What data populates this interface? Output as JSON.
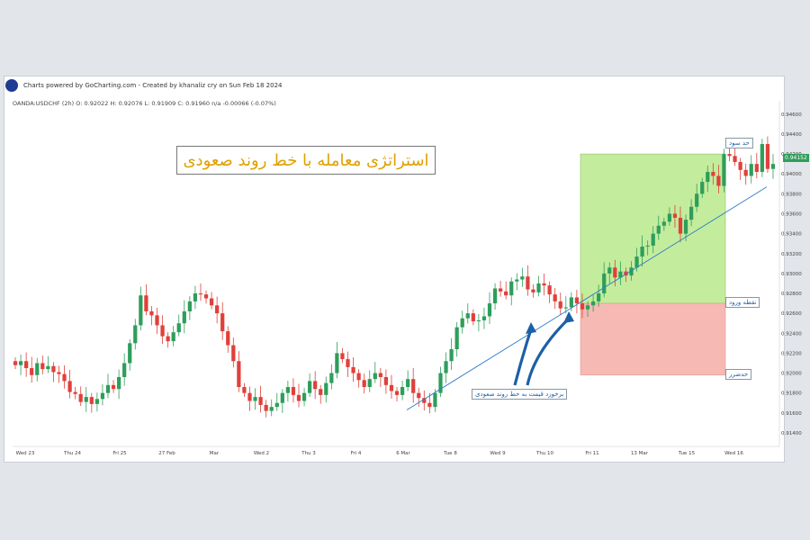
{
  "header": {
    "credit": "Charts powered by GoCharting.com - Created by khanaliz cry on Sun Feb 18 2024"
  },
  "chart_data": {
    "type": "candlestick",
    "symbol_line": "OANDA:USDCHF (2h)   O: 0.92022  H: 0.92076  L: 0.91909  C: 0.91960  n/a  -0.00066  (-0.07%)",
    "title": "استراتژی معامله با خط روند صعودی",
    "y_ticks": [
      0.914,
      0.916,
      0.918,
      0.92,
      0.922,
      0.924,
      0.926,
      0.928,
      0.93,
      0.932,
      0.934,
      0.936,
      0.938,
      0.94,
      0.942,
      0.944,
      0.946
    ],
    "ylim": [
      0.913,
      0.9468
    ],
    "x_ticks": [
      "Wed 23",
      "Thu 24",
      "Fri 25",
      "27 Feb",
      "Mar",
      "Wed 2",
      "Thu 3",
      "Fri 4",
      "6 Mar",
      "Tue 8",
      "Wed 9",
      "Thu 10",
      "Fri 11",
      "13 Mar",
      "Tue 15",
      "Wed 16"
    ],
    "last_price": "0.94152",
    "annotations": {
      "take_profit": "حد سود",
      "entry": "نقطه ورود",
      "stop_loss": "حدضرر",
      "touch": "برخورد قیمت به خط روند صعودی"
    },
    "levels": {
      "take_profit": 0.942,
      "entry": 0.927,
      "stop_loss": 0.9198
    },
    "trendline": {
      "from": [
        0.9163
      ],
      "to": [
        0.9387
      ]
    },
    "colors": {
      "up": "#2e9e5b",
      "down": "#e0403a",
      "profit_zone": "#c4ec9d",
      "loss_zone": "#f6b9b3",
      "trendline": "#2a7cc7",
      "title": "#e0a000"
    },
    "closes": [
      0.9208,
      0.9212,
      0.9205,
      0.9198,
      0.921,
      0.9204,
      0.9207,
      0.9201,
      0.9199,
      0.9192,
      0.9181,
      0.9179,
      0.9171,
      0.9176,
      0.9169,
      0.9174,
      0.918,
      0.9188,
      0.9184,
      0.9196,
      0.921,
      0.923,
      0.9248,
      0.9278,
      0.9262,
      0.9258,
      0.9248,
      0.9237,
      0.9232,
      0.9241,
      0.925,
      0.9262,
      0.9272,
      0.928,
      0.9279,
      0.9275,
      0.9268,
      0.926,
      0.9242,
      0.9228,
      0.9212,
      0.9186,
      0.918,
      0.9172,
      0.9176,
      0.9168,
      0.9162,
      0.9166,
      0.917,
      0.918,
      0.9186,
      0.9178,
      0.9172,
      0.918,
      0.9192,
      0.9184,
      0.9178,
      0.919,
      0.92,
      0.922,
      0.9214,
      0.9206,
      0.92,
      0.9193,
      0.9186,
      0.9194,
      0.92,
      0.9196,
      0.9188,
      0.9182,
      0.9178,
      0.9186,
      0.9194,
      0.918,
      0.9175,
      0.917,
      0.9166,
      0.918,
      0.92,
      0.9212,
      0.9224,
      0.9246,
      0.9255,
      0.926,
      0.9252,
      0.9253,
      0.9257,
      0.927,
      0.9285,
      0.9282,
      0.9278,
      0.9292,
      0.9294,
      0.9297,
      0.9284,
      0.9281,
      0.929,
      0.9288,
      0.9279,
      0.9272,
      0.9265,
      0.9266,
      0.9276,
      0.927,
      0.9264,
      0.9268,
      0.9272,
      0.928,
      0.93,
      0.9306,
      0.9296,
      0.9302,
      0.9298,
      0.9306,
      0.9317,
      0.9327,
      0.9328,
      0.934,
      0.9348,
      0.9352,
      0.936,
      0.9356,
      0.934,
      0.9354,
      0.9367,
      0.938,
      0.9392,
      0.9402,
      0.9398,
      0.9388,
      0.942,
      0.9418,
      0.9412,
      0.9404,
      0.9398,
      0.941,
      0.9402,
      0.943,
      0.9405,
      0.941
    ]
  }
}
